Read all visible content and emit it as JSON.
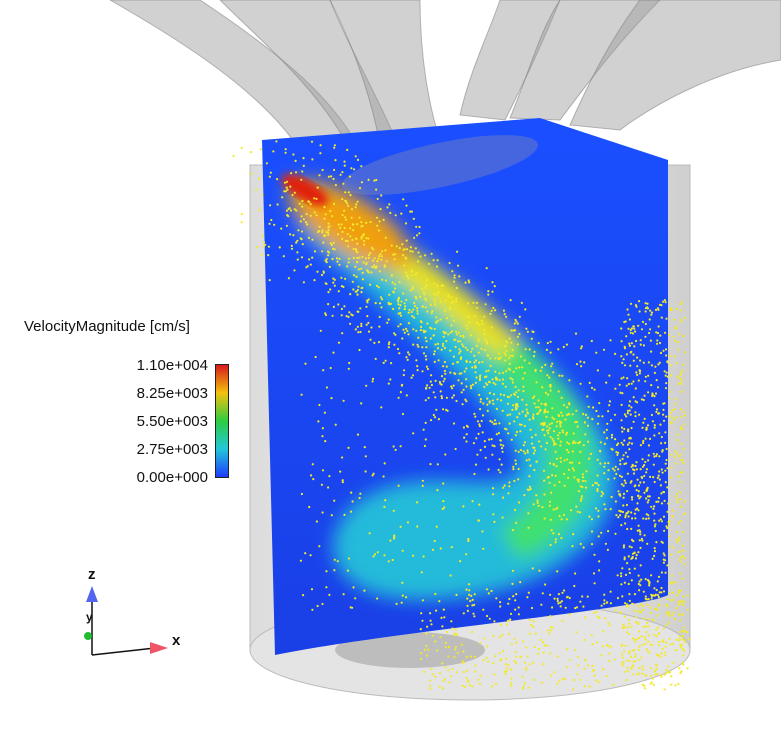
{
  "legend": {
    "title": "VelocityMagnitude [cm/s]",
    "ticks": [
      "1.10e+004",
      "8.25e+003",
      "5.50e+003",
      "2.75e+003",
      "0.00e+000"
    ],
    "colors": [
      "#d7191c",
      "#f4c20d",
      "#2ecc40",
      "#22c7d9",
      "#1e3cff"
    ]
  },
  "axes": {
    "z": "z",
    "y": "y",
    "x": "x",
    "colors": {
      "z": "#5566ee",
      "y": "#22bb33",
      "x": "#ee5566"
    }
  }
}
